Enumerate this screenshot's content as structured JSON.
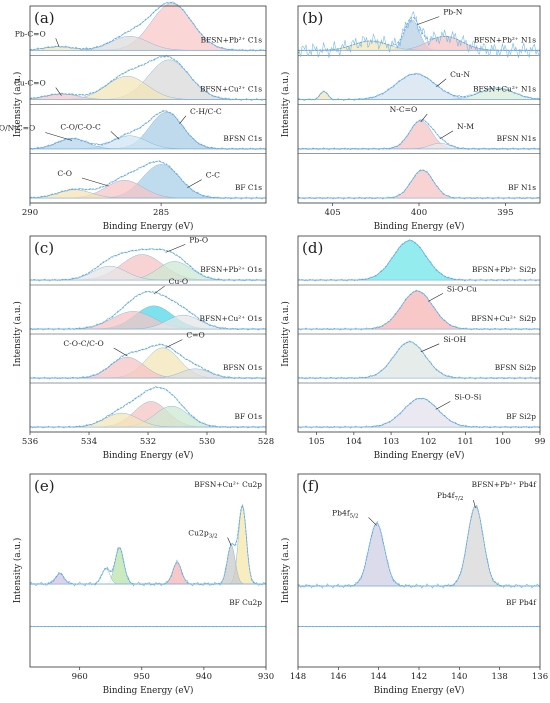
{
  "chart_data": [
    {
      "panel": "(a)",
      "type": "line",
      "xlabel": "Binding Energy (eV)",
      "ylabel": "Intensity (a.u.)",
      "xlim": [
        290,
        281
      ],
      "xticks": [
        "290",
        "285",
        "280"
      ],
      "rows": [
        {
          "label": "BF C1s",
          "peaks": [
            {
              "x": 285.0,
              "h": 0.72,
              "w": 1.0,
              "color": "#a9d0ea"
            },
            {
              "x": 286.4,
              "h": 0.38,
              "w": 1.0,
              "color": "#f6c6c6"
            },
            {
              "x": 288.3,
              "h": 0.18,
              "w": 0.9,
              "color": "#f5e3b3"
            }
          ]
        },
        {
          "label": "BFSN C1s",
          "peaks": [
            {
              "x": 284.8,
              "h": 0.78,
              "w": 0.9,
              "color": "#a9cde6"
            },
            {
              "x": 286.2,
              "h": 0.28,
              "w": 0.9,
              "color": "#cfe5f3"
            },
            {
              "x": 288.4,
              "h": 0.22,
              "w": 0.8,
              "color": "#b7d6ee"
            }
          ]
        },
        {
          "label": "BFSN+Cu²⁺ C1s",
          "peaks": [
            {
              "x": 284.7,
              "h": 0.85,
              "w": 1.1,
              "color": "#d9d9d9"
            },
            {
              "x": 286.3,
              "h": 0.5,
              "w": 1.1,
              "color": "#f4e6b8"
            },
            {
              "x": 288.8,
              "h": 0.12,
              "w": 0.9,
              "color": "#f6c6c6"
            }
          ]
        },
        {
          "label": "BFSN+Pb²⁺ C1s",
          "peaks": [
            {
              "x": 284.6,
              "h": 1.0,
              "w": 1.1,
              "color": "#f8c8c8"
            },
            {
              "x": 286.2,
              "h": 0.3,
              "w": 1.0,
              "color": "#dcdcdc"
            },
            {
              "x": 288.9,
              "h": 0.08,
              "w": 0.8,
              "color": "#f4e6b8"
            }
          ]
        }
      ],
      "annotations": [
        {
          "text": "Pb-C=O",
          "x": 289.4,
          "row": 3,
          "lx": 288.9
        },
        {
          "text": "Cu-C=O",
          "x": 289.4,
          "row": 2,
          "lx": 288.8
        },
        {
          "text": "O-C=O/N-C=O",
          "x": 289.8,
          "row": 1,
          "lx": 288.4
        },
        {
          "text": "C-O/C-O-C",
          "x": 287.3,
          "row": 1,
          "lx": 286.6
        },
        {
          "text": "C-H/C-C",
          "x": 283.9,
          "row": 1,
          "lx": 284.3
        },
        {
          "text": "C-O",
          "x": 288.4,
          "row": 0,
          "lx": 287.0
        },
        {
          "text": "C-C",
          "x": 283.3,
          "row": 0,
          "lx": 284.0
        }
      ]
    },
    {
      "panel": "(b)",
      "type": "line",
      "xlabel": "Binding Energy (eV)",
      "ylabel": "Intensity (a.u.)",
      "xlim": [
        407,
        393
      ],
      "xticks": [
        "405",
        "400",
        "395"
      ],
      "rows": [
        {
          "label": "BF N1s",
          "peaks": [
            {
              "x": 399.8,
              "h": 0.6,
              "w": 0.9,
              "color": "#f6c4c4"
            }
          ]
        },
        {
          "label": "BFSN N1s",
          "peaks": [
            {
              "x": 399.9,
              "h": 0.6,
              "w": 0.9,
              "color": "#f6c4c4"
            },
            {
              "x": 398.8,
              "h": 0.12,
              "w": 0.8,
              "color": "#e9e9e9"
            }
          ]
        },
        {
          "label": "BFSN+Cu²⁺ N1s",
          "peaks": [
            {
              "x": 400.2,
              "h": 0.55,
              "w": 1.6,
              "color": "#d4e1ef"
            },
            {
              "x": 395.5,
              "h": 0.25,
              "w": 1.4,
              "color": "#d9ecd9"
            },
            {
              "x": 405.5,
              "h": 0.18,
              "w": 0.3,
              "color": "#f4e6b8"
            }
          ]
        },
        {
          "label": "BFSN+Pb²⁺ N1s",
          "peaks": [
            {
              "x": 400.4,
              "h": 0.65,
              "w": 0.6,
              "color": "#b8cfe6"
            },
            {
              "x": 398.5,
              "h": 0.3,
              "w": 1.4,
              "color": "#f6c4c4"
            },
            {
              "x": 402.8,
              "h": 0.2,
              "w": 1.4,
              "color": "#f4e6b8"
            }
          ]
        }
      ],
      "annotations": [
        {
          "text": "Pb-N",
          "x": 398.6,
          "row": 3,
          "lx": 400.1
        },
        {
          "text": "Cu-N",
          "x": 398.2,
          "row": 2,
          "lx": 399.0
        },
        {
          "text": "N-C=O",
          "x": 400.1,
          "row": 1,
          "lx": 399.9
        },
        {
          "text": "N-M",
          "x": 397.8,
          "row": 1,
          "lx": 398.8
        }
      ]
    },
    {
      "panel": "(c)",
      "type": "line",
      "xlabel": "Binding Energy (eV)",
      "ylabel": "Intensity (a.u.)",
      "xlim": [
        536,
        528
      ],
      "xticks": [
        "536",
        "534",
        "532",
        "530",
        "528"
      ],
      "rows": [
        {
          "label": "BF O1s",
          "peaks": [
            {
              "x": 531.9,
              "h": 0.55,
              "w": 0.8,
              "color": "#f6c4c4"
            },
            {
              "x": 531.2,
              "h": 0.45,
              "w": 0.8,
              "color": "#cde8d2"
            },
            {
              "x": 532.9,
              "h": 0.3,
              "w": 0.8,
              "color": "#f4e6b8"
            }
          ]
        },
        {
          "label": "BFSN O1s",
          "peaks": [
            {
              "x": 531.5,
              "h": 0.65,
              "w": 0.8,
              "color": "#f4e6b8"
            },
            {
              "x": 532.7,
              "h": 0.45,
              "w": 0.8,
              "color": "#f6c4c4"
            },
            {
              "x": 530.4,
              "h": 0.2,
              "w": 0.7,
              "color": "#dcdcdc"
            }
          ]
        },
        {
          "label": "BFSN+Cu²⁺ O1s",
          "peaks": [
            {
              "x": 531.8,
              "h": 0.5,
              "w": 0.9,
              "color": "#4fd8e8"
            },
            {
              "x": 532.5,
              "h": 0.38,
              "w": 1.0,
              "color": "#f6c4c4"
            },
            {
              "x": 530.8,
              "h": 0.3,
              "w": 0.8,
              "color": "#e6e6e6"
            }
          ]
        },
        {
          "label": "BFSN+Pb²⁺ O1s",
          "peaks": [
            {
              "x": 532.2,
              "h": 0.55,
              "w": 1.0,
              "color": "#f6c4c4"
            },
            {
              "x": 531.1,
              "h": 0.4,
              "w": 0.8,
              "color": "#cde8d2"
            },
            {
              "x": 533.3,
              "h": 0.3,
              "w": 0.8,
              "color": "#e6e6e6"
            }
          ]
        }
      ],
      "annotations": [
        {
          "text": "Pb-O",
          "x": 530.6,
          "row": 3,
          "lx": 531.4
        },
        {
          "text": "Cu-O",
          "x": 531.3,
          "row": 2,
          "lx": 531.8
        },
        {
          "text": "C-O-C/C-O",
          "x": 533.5,
          "row": 1,
          "lx": 532.7
        },
        {
          "text": "C=O",
          "x": 530.7,
          "row": 1,
          "lx": 531.4
        }
      ]
    },
    {
      "panel": "(d)",
      "type": "line",
      "xlabel": "Binding Energy (eV)",
      "ylabel": "Intensity (a.u.)",
      "xlim": [
        105.5,
        99
      ],
      "xticks": [
        "105",
        "104",
        "103",
        "102",
        "101",
        "100",
        "99"
      ],
      "rows": [
        {
          "label": "BF Si2p",
          "peaks": [
            {
              "x": 102.2,
              "h": 0.62,
              "w": 0.65,
              "color": "#e3e2ee"
            }
          ]
        },
        {
          "label": "BFSN Si2p",
          "peaks": [
            {
              "x": 102.5,
              "h": 0.78,
              "w": 0.6,
              "color": "#dde6e1"
            }
          ]
        },
        {
          "label": "BFSN+Cu²⁺ Si2p",
          "peaks": [
            {
              "x": 102.3,
              "h": 0.82,
              "w": 0.6,
              "color": "#f6b4b4"
            }
          ]
        },
        {
          "label": "BFSN+Pb²⁺ Si2p",
          "peaks": [
            {
              "x": 102.5,
              "h": 0.85,
              "w": 0.62,
              "color": "#70e6ea"
            }
          ]
        }
      ],
      "annotations": [
        {
          "text": "Si-O-Cu",
          "x": 101.5,
          "row": 2,
          "lx": 102.0
        },
        {
          "text": "Si-OH",
          "x": 101.6,
          "row": 1,
          "lx": 102.2
        },
        {
          "text": "Si-O-Si",
          "x": 101.3,
          "row": 0,
          "lx": 101.8
        }
      ]
    },
    {
      "panel": "(e)",
      "type": "line",
      "xlabel": "Binding Energy (eV)",
      "ylabel": "Intensity (a.u.)",
      "xlim": [
        968,
        930
      ],
      "xticks": [
        "960",
        "950",
        "940",
        "930"
      ],
      "rows": [
        {
          "label": "BF Cu2p",
          "peaks": []
        },
        {
          "label": "BFSN+Cu²⁺ Cu2p",
          "peaks": [
            {
              "x": 933.8,
              "h": 0.9,
              "w": 0.9,
              "color": "#f6e7a8"
            },
            {
              "x": 935.6,
              "h": 0.45,
              "w": 0.9,
              "color": "#c9c9c9"
            },
            {
              "x": 944.3,
              "h": 0.25,
              "w": 1.0,
              "color": "#f6b4b4"
            },
            {
              "x": 953.6,
              "h": 0.42,
              "w": 1.0,
              "color": "#b9e3a9"
            },
            {
              "x": 955.8,
              "h": 0.18,
              "w": 0.9,
              "color": "#ffffff"
            },
            {
              "x": 963.2,
              "h": 0.12,
              "w": 1.0,
              "color": "#d2c6e6"
            }
          ]
        }
      ],
      "annotations": [
        {
          "text": "Cu2p",
          "sub": "3/2",
          "x": 937.8,
          "row": 1,
          "lx": 935.6
        }
      ]
    },
    {
      "panel": "(f)",
      "type": "line",
      "xlabel": "Binding Energy (eV)",
      "ylabel": "Intensity (a.u.)",
      "xlim": [
        148,
        136
      ],
      "xticks": [
        "148",
        "146",
        "144",
        "142",
        "140",
        "138",
        "136"
      ],
      "rows": [
        {
          "label": "BF Pb4f",
          "peaks": []
        },
        {
          "label": "BFSN+Pb²⁺ Pb4f",
          "peaks": [
            {
              "x": 144.1,
              "h": 0.72,
              "w": 0.55,
              "color": "#cfcfe6"
            },
            {
              "x": 139.2,
              "h": 0.92,
              "w": 0.55,
              "color": "#d7d7d7"
            }
          ]
        }
      ],
      "annotations": [
        {
          "text": "Pb4f",
          "sub": "5/2",
          "x": 145.0,
          "row": 1,
          "lx": 144.1
        },
        {
          "text": "Pb4f",
          "sub": "7/2",
          "x": 139.8,
          "row": 1,
          "lx": 139.2
        }
      ]
    }
  ]
}
